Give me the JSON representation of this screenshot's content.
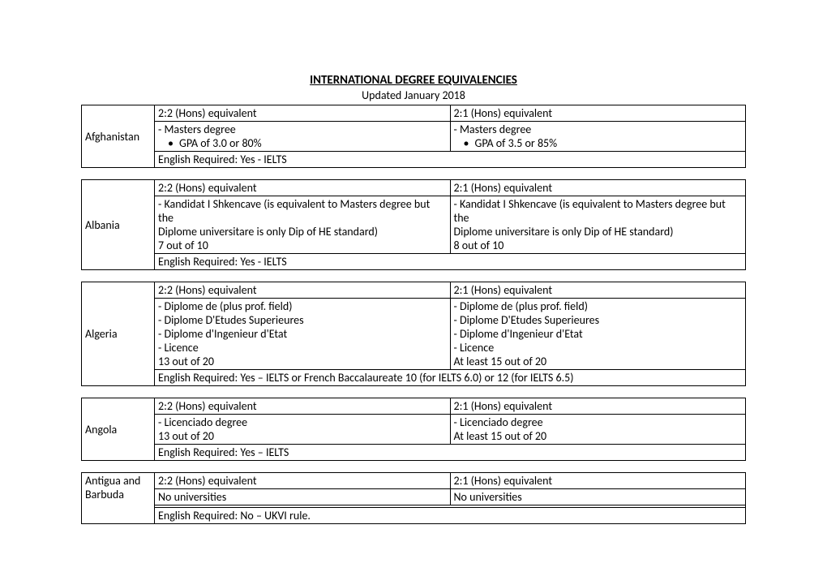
{
  "title": "INTERNATIONAL DEGREE EQUIVALENCIES",
  "subtitle": "Updated January 2018",
  "header22": "2:2 (Hons) equivalent",
  "header21": "2:1 (Hons) equivalent",
  "countries": [
    {
      "name": "Afghanistan",
      "col1_intro": "- Masters degree",
      "col1_bullet": "GPA of 3.0 or 80%",
      "col2_intro": "- Masters degree",
      "col2_bullet": "GPA of 3.5 or 85%",
      "english": "English Required: Yes - IELTS"
    },
    {
      "name": "Albania",
      "col1_l1": "- Kandidat I Shkencave (is equivalent to Masters degree but the",
      "col1_l2": "Diplome universitare is only Dip of HE standard)",
      "col1_l3": "7 out of 10",
      "col2_l1": "- Kandidat I Shkencave (is equivalent to Masters degree but the",
      "col2_l2": "Diplome universitare is only Dip of HE standard)",
      "col2_l3": "8 out of 10",
      "english": "English Required: Yes - IELTS"
    },
    {
      "name": "Algeria",
      "col1_l1": "- Diplome de (plus prof. field)",
      "col1_l2": "- Diplome D'Etudes Superieures",
      "col1_l3": "- Diplome d'Ingenieur d'Etat",
      "col1_l4": "- Licence",
      "col1_l5": "13 out of 20",
      "col2_l1": "- Diplome de (plus prof. field)",
      "col2_l2": "- Diplome D'Etudes Superieures",
      "col2_l3": "- Diplome d'Ingenieur d'Etat",
      "col2_l4": "- Licence",
      "col2_l5": "At least 15 out of 20",
      "english": "English Required: Yes – IELTS or French Baccalaureate 10 (for IELTS 6.0) or 12 (for IELTS 6.5)"
    },
    {
      "name": "Angola",
      "col1_l1": "- Licenciado degree",
      "col1_l2": "13 out of 20",
      "col2_l1": "- Licenciado degree",
      "col2_l2": "At least 15 out of 20",
      "english": "English Required: Yes – IELTS"
    },
    {
      "name": "Antigua and Barbuda",
      "col1_l1": "No universities",
      "col2_l1": "No universities",
      "blank": " ",
      "english": "English Required: No – UKVI rule."
    }
  ]
}
